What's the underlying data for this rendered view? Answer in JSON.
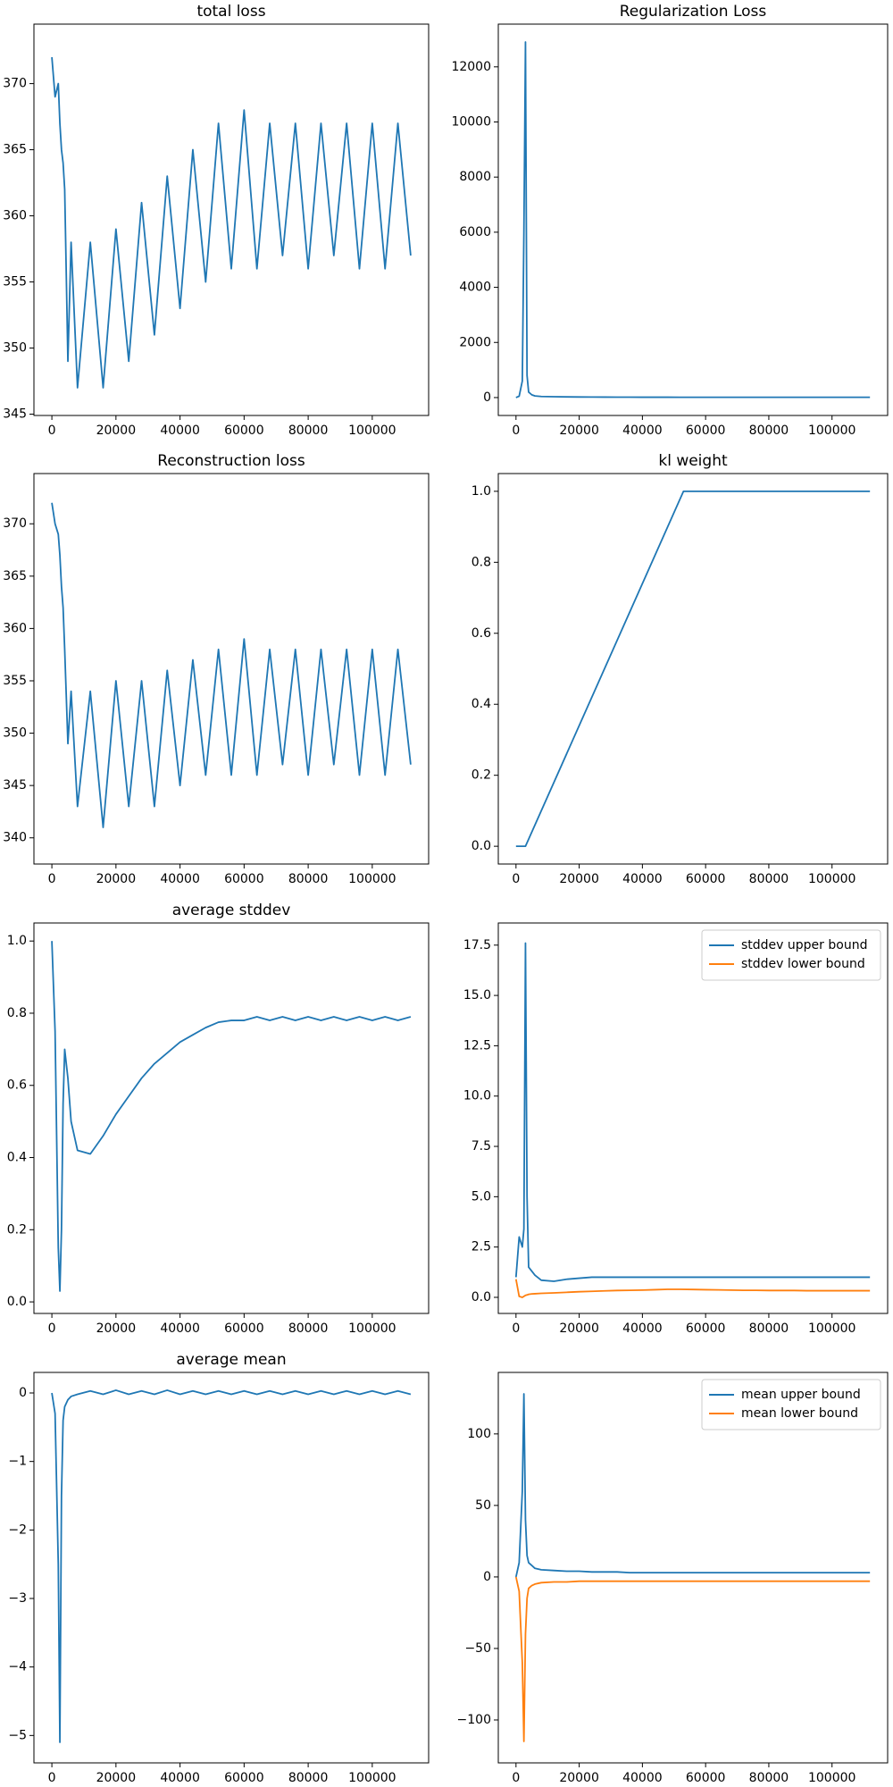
{
  "chart_data": [
    {
      "type": "line",
      "title": "total loss",
      "color": "#1f77b4",
      "x": [
        0,
        1000,
        2000,
        2500,
        3000,
        3500,
        4000,
        5000,
        6000,
        8000,
        12000,
        16000,
        20000,
        24000,
        28000,
        32000,
        36000,
        40000,
        44000,
        48000,
        52000,
        56000,
        60000,
        64000,
        68000,
        72000,
        76000,
        80000,
        84000,
        88000,
        92000,
        96000,
        100000,
        104000,
        108000,
        112000
      ],
      "values": [
        372,
        369,
        370,
        367,
        365,
        364,
        362,
        349,
        358,
        347,
        358,
        347,
        359,
        349,
        361,
        351,
        363,
        353,
        365,
        355,
        367,
        356,
        368,
        356,
        367,
        357,
        367,
        356,
        367,
        357,
        367,
        356,
        367,
        356,
        367,
        357
      ],
      "xlim": [
        -5600,
        117600
      ],
      "xticks": [
        0,
        20000,
        40000,
        60000,
        80000,
        100000
      ],
      "ylim": [
        344.9,
        374.5
      ],
      "yticks": [
        345,
        350,
        355,
        360,
        365,
        370
      ]
    },
    {
      "type": "line",
      "title": "Regularization Loss",
      "color": "#1f77b4",
      "x": [
        0,
        1000,
        2000,
        2500,
        3000,
        3500,
        4000,
        5000,
        6000,
        8000,
        12000,
        16000,
        20000,
        24000,
        28000,
        32000,
        36000,
        40000,
        44000,
        48000,
        52000,
        56000,
        60000,
        64000,
        68000,
        72000,
        76000,
        80000,
        84000,
        88000,
        92000,
        96000,
        100000,
        104000,
        108000,
        112000
      ],
      "values": [
        0,
        50,
        600,
        6000,
        12900,
        800,
        200,
        100,
        60,
        40,
        30,
        25,
        20,
        18,
        16,
        15,
        14,
        13,
        12,
        12,
        11,
        11,
        10,
        10,
        10,
        10,
        10,
        10,
        10,
        10,
        10,
        10,
        10,
        10,
        10,
        10
      ],
      "xlim": [
        -5600,
        117600
      ],
      "xticks": [
        0,
        20000,
        40000,
        60000,
        80000,
        100000
      ],
      "ylim": [
        -650,
        13550
      ],
      "yticks": [
        0,
        2000,
        4000,
        6000,
        8000,
        10000,
        12000
      ]
    },
    {
      "type": "line",
      "title": "Reconstruction loss",
      "color": "#1f77b4",
      "x": [
        0,
        1000,
        2000,
        2500,
        3000,
        3500,
        4000,
        5000,
        6000,
        8000,
        12000,
        16000,
        20000,
        24000,
        28000,
        32000,
        36000,
        40000,
        44000,
        48000,
        52000,
        56000,
        60000,
        64000,
        68000,
        72000,
        76000,
        80000,
        84000,
        88000,
        92000,
        96000,
        100000,
        104000,
        108000,
        112000
      ],
      "values": [
        372,
        370,
        369,
        367,
        364,
        362,
        358,
        349,
        354,
        343,
        354,
        341,
        355,
        343,
        355,
        343,
        356,
        345,
        357,
        346,
        358,
        346,
        359,
        346,
        358,
        347,
        358,
        346,
        358,
        347,
        358,
        346,
        358,
        346,
        358,
        347
      ],
      "xlim": [
        -5600,
        117600
      ],
      "xticks": [
        0,
        20000,
        40000,
        60000,
        80000,
        100000
      ],
      "ylim": [
        337.5,
        374.8
      ],
      "yticks": [
        340,
        345,
        350,
        355,
        360,
        365,
        370
      ]
    },
    {
      "type": "line",
      "title": "kl weight",
      "color": "#1f77b4",
      "x": [
        0,
        3000,
        53000,
        112000
      ],
      "values": [
        0,
        0,
        1,
        1
      ],
      "xlim": [
        -5600,
        117600
      ],
      "xticks": [
        0,
        20000,
        40000,
        60000,
        80000,
        100000
      ],
      "ylim": [
        -0.05,
        1.05
      ],
      "yticks": [
        {
          "value": 0,
          "label": "0.0"
        },
        0.2,
        0.4,
        0.6,
        0.8,
        {
          "value": 1,
          "label": "1.0"
        }
      ]
    },
    {
      "type": "line",
      "title": "average stddev",
      "color": "#1f77b4",
      "x": [
        0,
        1000,
        2000,
        2500,
        3000,
        3500,
        4000,
        5000,
        6000,
        8000,
        12000,
        16000,
        20000,
        24000,
        28000,
        32000,
        36000,
        40000,
        44000,
        48000,
        52000,
        56000,
        60000,
        64000,
        68000,
        72000,
        76000,
        80000,
        84000,
        88000,
        92000,
        96000,
        100000,
        104000,
        108000,
        112000
      ],
      "values": [
        1.0,
        0.75,
        0.15,
        0.03,
        0.2,
        0.55,
        0.7,
        0.62,
        0.5,
        0.42,
        0.41,
        0.46,
        0.52,
        0.57,
        0.62,
        0.66,
        0.69,
        0.72,
        0.74,
        0.76,
        0.775,
        0.78,
        0.78,
        0.79,
        0.78,
        0.79,
        0.78,
        0.79,
        0.78,
        0.79,
        0.78,
        0.79,
        0.78,
        0.79,
        0.78,
        0.79
      ],
      "xlim": [
        -5600,
        117600
      ],
      "xticks": [
        0,
        20000,
        40000,
        60000,
        80000,
        100000
      ],
      "ylim": [
        -0.032,
        1.05
      ],
      "yticks": [
        {
          "value": 0,
          "label": "0.0"
        },
        0.2,
        0.4,
        0.6,
        0.8,
        {
          "value": 1,
          "label": "1.0"
        }
      ]
    },
    {
      "type": "line",
      "legend": "upper right",
      "x": [
        0,
        1000,
        2000,
        2500,
        3000,
        3500,
        4000,
        5000,
        6000,
        8000,
        12000,
        16000,
        20000,
        24000,
        28000,
        32000,
        36000,
        40000,
        44000,
        48000,
        52000,
        56000,
        60000,
        64000,
        68000,
        72000,
        76000,
        80000,
        84000,
        88000,
        92000,
        96000,
        100000,
        104000,
        108000,
        112000
      ],
      "series": [
        {
          "name": "stddev upper bound",
          "color": "#1f77b4",
          "values": [
            1.0,
            3.0,
            2.5,
            3.4,
            17.6,
            5,
            1.5,
            1.3,
            1.1,
            0.85,
            0.8,
            0.9,
            0.95,
            1.0,
            1.0,
            1.0,
            1.0,
            1.0,
            1.0,
            1.0,
            1.0,
            1.0,
            1.0,
            1.0,
            1.0,
            1.0,
            1.0,
            1.0,
            1.0,
            1.0,
            1.0,
            1.0,
            1.0,
            1.0,
            1.0,
            1.0
          ]
        },
        {
          "name": "stddev lower bound",
          "color": "#ff7f0e",
          "values": [
            0.9,
            0.05,
            0.0,
            0.05,
            0.1,
            0.12,
            0.15,
            0.17,
            0.18,
            0.2,
            0.22,
            0.25,
            0.28,
            0.3,
            0.32,
            0.34,
            0.35,
            0.36,
            0.38,
            0.4,
            0.4,
            0.39,
            0.38,
            0.37,
            0.36,
            0.35,
            0.35,
            0.34,
            0.34,
            0.34,
            0.33,
            0.33,
            0.33,
            0.33,
            0.33,
            0.33
          ]
        }
      ],
      "xlim": [
        -5600,
        117600
      ],
      "xticks": [
        0,
        20000,
        40000,
        60000,
        80000,
        100000
      ],
      "ylim": [
        -0.8,
        18.6
      ],
      "yticks": [
        {
          "value": 0,
          "label": "0.0"
        },
        2.5,
        {
          "value": 5,
          "label": "5.0"
        },
        7.5,
        {
          "value": 10,
          "label": "10.0"
        },
        12.5,
        {
          "value": 15,
          "label": "15.0"
        },
        17.5
      ]
    },
    {
      "type": "line",
      "title": "average mean",
      "color": "#1f77b4",
      "x": [
        0,
        1000,
        2000,
        2500,
        3000,
        3500,
        4000,
        5000,
        6000,
        8000,
        12000,
        16000,
        20000,
        24000,
        28000,
        32000,
        36000,
        40000,
        44000,
        48000,
        52000,
        56000,
        60000,
        64000,
        68000,
        72000,
        76000,
        80000,
        84000,
        88000,
        92000,
        96000,
        100000,
        104000,
        108000,
        112000
      ],
      "values": [
        0,
        -0.3,
        -2.5,
        -5.1,
        -1.5,
        -0.4,
        -0.2,
        -0.1,
        -0.05,
        -0.02,
        0.03,
        -0.02,
        0.04,
        -0.02,
        0.03,
        -0.02,
        0.04,
        -0.02,
        0.03,
        -0.02,
        0.03,
        -0.02,
        0.03,
        -0.02,
        0.03,
        -0.02,
        0.03,
        -0.02,
        0.03,
        -0.02,
        0.03,
        -0.02,
        0.03,
        -0.02,
        0.03,
        -0.02
      ],
      "xlim": [
        -5600,
        117600
      ],
      "xticks": [
        0,
        20000,
        40000,
        60000,
        80000,
        100000
      ],
      "ylim": [
        -5.4,
        0.3
      ],
      "yticks": [
        {
          "value": -5,
          "label": "−5"
        },
        {
          "value": -4,
          "label": "−4"
        },
        {
          "value": -3,
          "label": "−3"
        },
        {
          "value": -2,
          "label": "−2"
        },
        {
          "value": -1,
          "label": "−1"
        },
        0
      ]
    },
    {
      "type": "line",
      "legend": "upper right",
      "x": [
        0,
        1000,
        2000,
        2500,
        3000,
        3500,
        4000,
        5000,
        6000,
        8000,
        12000,
        16000,
        20000,
        24000,
        28000,
        32000,
        36000,
        40000,
        44000,
        48000,
        52000,
        56000,
        60000,
        64000,
        68000,
        72000,
        76000,
        80000,
        84000,
        88000,
        92000,
        96000,
        100000,
        104000,
        108000,
        112000
      ],
      "series": [
        {
          "name": "mean upper bound",
          "color": "#1f77b4",
          "values": [
            0,
            10,
            60,
            128,
            40,
            15,
            10,
            8,
            6,
            5,
            4.5,
            4,
            4,
            3.5,
            3.5,
            3.5,
            3,
            3,
            3,
            3,
            3,
            3,
            3,
            3,
            3,
            3,
            3,
            3,
            3,
            3,
            3,
            3,
            3,
            3,
            3,
            3
          ]
        },
        {
          "name": "mean lower bound",
          "color": "#ff7f0e",
          "values": [
            0,
            -10,
            -60,
            -115,
            -40,
            -15,
            -8,
            -6,
            -5,
            -4,
            -3.5,
            -3.5,
            -3,
            -3,
            -3,
            -3,
            -3,
            -3,
            -3,
            -3,
            -3,
            -3,
            -3,
            -3,
            -3,
            -3,
            -3,
            -3,
            -3,
            -3,
            -3,
            -3,
            -3,
            -3,
            -3,
            -3
          ]
        }
      ],
      "xlim": [
        -5600,
        117600
      ],
      "xticks": [
        0,
        20000,
        40000,
        60000,
        80000,
        100000
      ],
      "ylim": [
        -130,
        143
      ],
      "yticks": [
        {
          "value": -100,
          "label": "−100"
        },
        {
          "value": -50,
          "label": "−50"
        },
        0,
        50,
        100
      ]
    }
  ]
}
